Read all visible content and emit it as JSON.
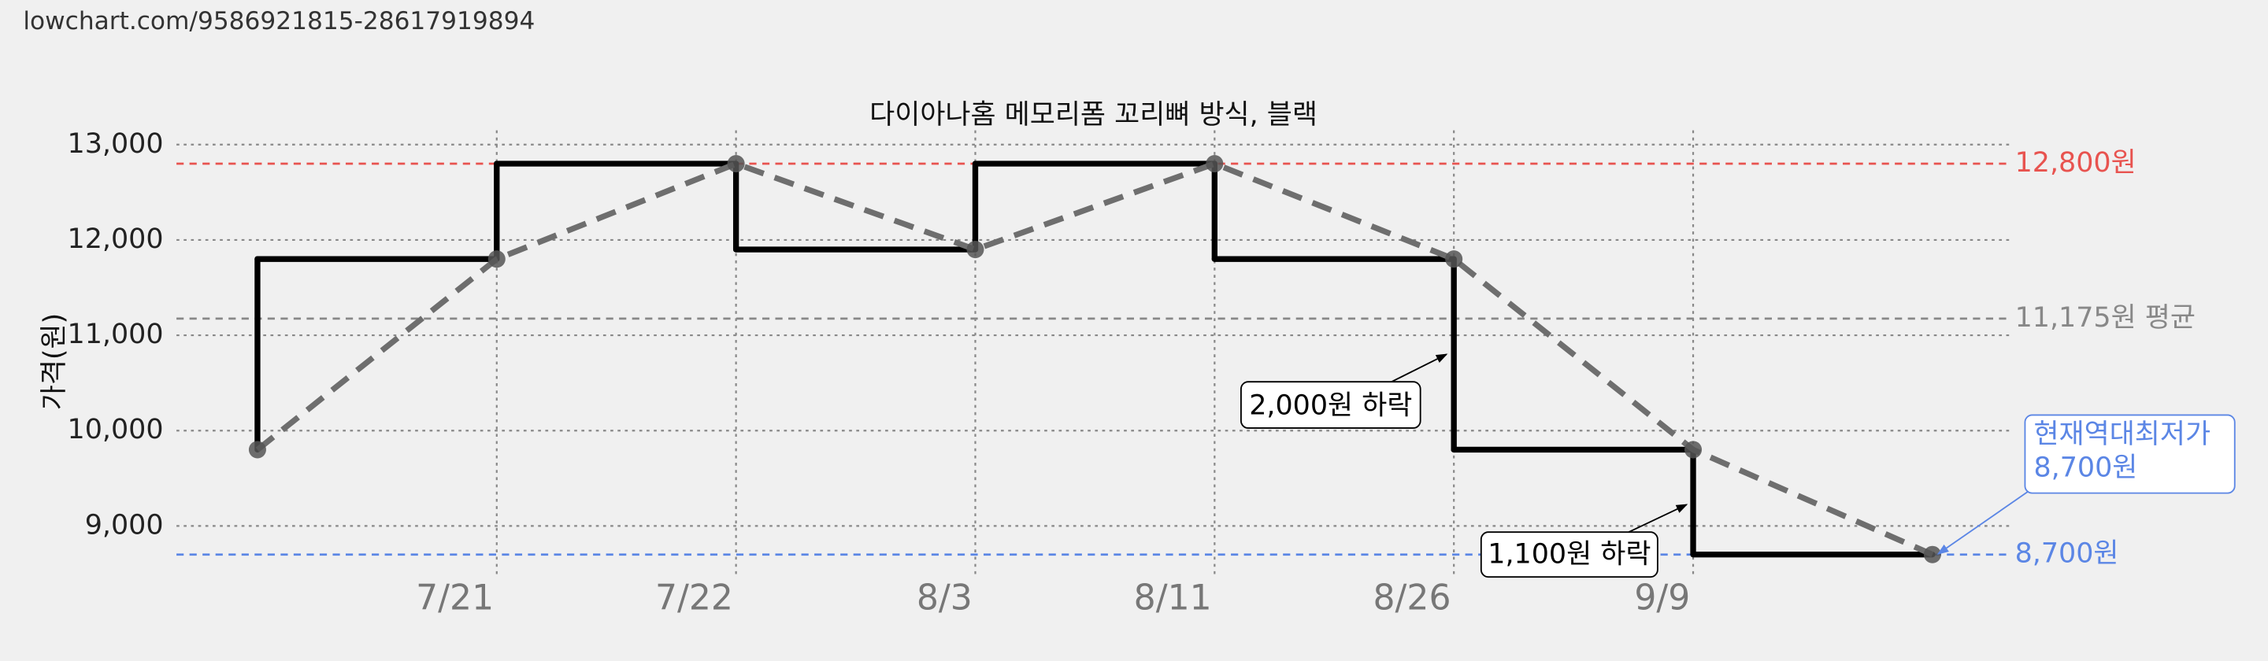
{
  "url": "lowchart.com/9586921815-28617919894",
  "chart_data": {
    "type": "step",
    "title": "다이아나홈 메모리폼 꼬리뼈 방식, 블랙",
    "y_label": "가격(원)",
    "categories": [
      null,
      "7/21",
      "7/22",
      "8/3",
      "8/11",
      "8/26",
      "9/9",
      null
    ],
    "series": [
      {
        "color": "#000000",
        "values": [
          9800,
          11800,
          12800,
          11900,
          12800,
          11800,
          9800,
          8700
        ]
      }
    ],
    "trend_color": "#6e6e6e",
    "ylim": [
      8450,
      13150
    ],
    "yticks": [
      {
        "value": 9000,
        "label": "9,000"
      },
      {
        "value": 10000,
        "label": "10,000"
      },
      {
        "value": 11000,
        "label": "11,000"
      },
      {
        "value": 12000,
        "label": "12,000"
      },
      {
        "value": 13000,
        "label": "13,000"
      }
    ],
    "grid": true,
    "reference_lines": [
      {
        "value": 12800,
        "label": "12,800원",
        "color": "#e8534f"
      },
      {
        "value": 11175,
        "label": "11,175원 평균",
        "color": "#888888"
      },
      {
        "value": 8700,
        "label": "8,700원",
        "color": "#5b86e5"
      }
    ],
    "annotations": [
      "2,000원 하락",
      "1,100원 하락"
    ],
    "lowest_note": [
      "현재역대최저가",
      "8,700원"
    ]
  }
}
